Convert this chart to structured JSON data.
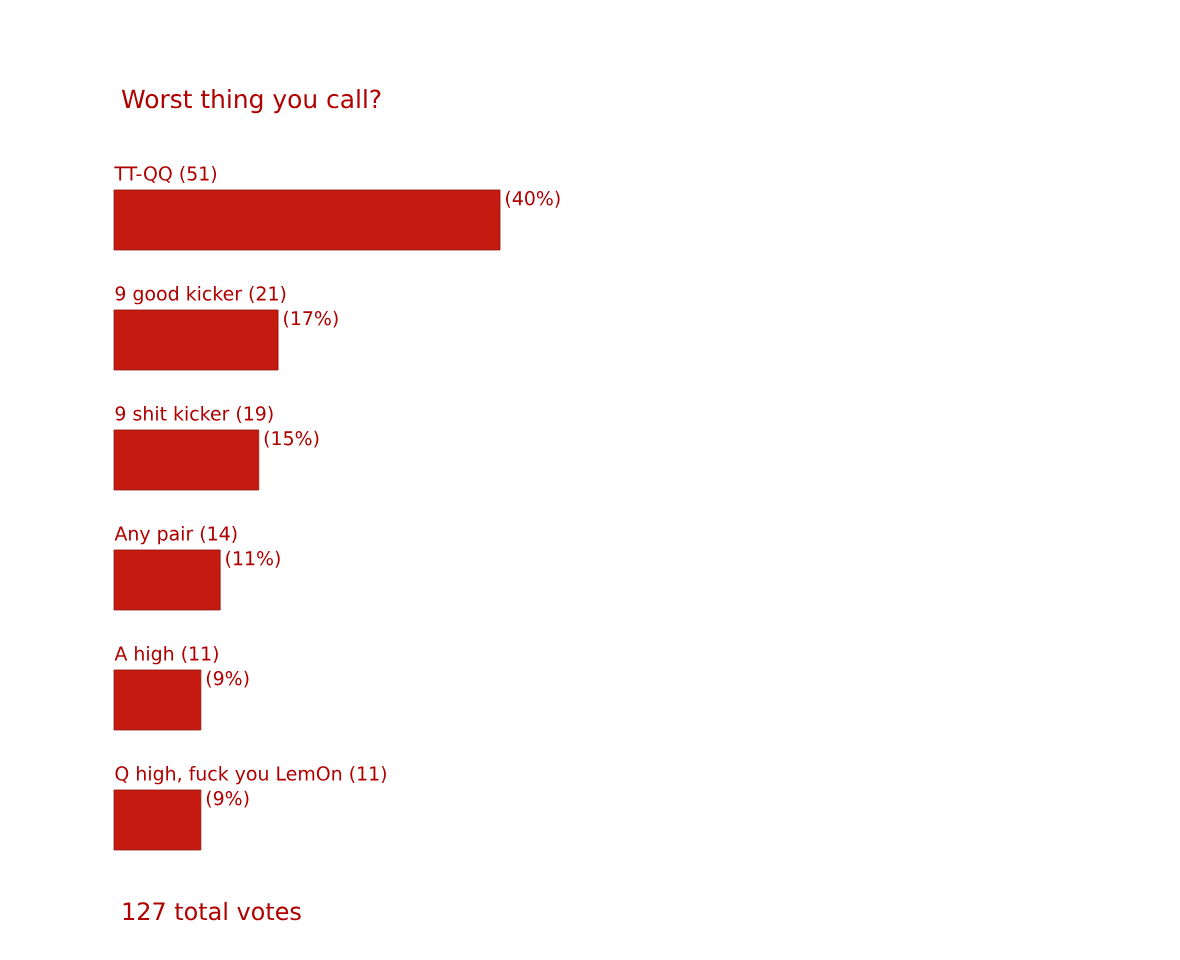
{
  "chart_data": {
    "type": "bar",
    "orientation": "horizontal",
    "title": "Worst thing you call?",
    "categories": [
      "TT-QQ (51)",
      "9 good kicker (21)",
      "9 shit kicker (19)",
      "Any pair (14)",
      "A high (11)",
      "Q high, fuck you LemOn (11)"
    ],
    "values": [
      40,
      17,
      15,
      11,
      9,
      9
    ],
    "value_labels": [
      "(40%)",
      "(17%)",
      "(15%)",
      "(11%)",
      "(9%)",
      "(9%)"
    ],
    "color": "#c41a10",
    "annotations": [
      "127 total votes"
    ]
  }
}
